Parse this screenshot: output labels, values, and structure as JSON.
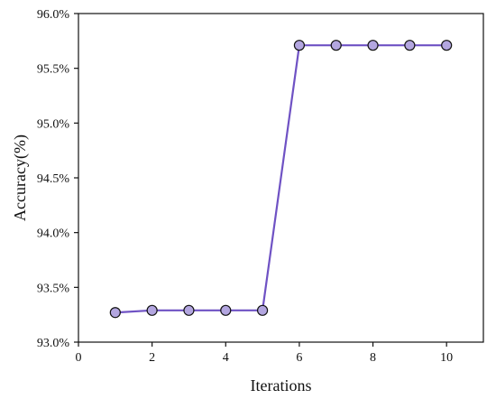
{
  "chart_data": {
    "type": "line",
    "xlabel": "Iterations",
    "ylabel": "Accuracy(%)",
    "xlim": [
      0,
      11
    ],
    "ylim": [
      93.0,
      96.0
    ],
    "x_ticks": [
      0,
      2,
      4,
      6,
      8,
      10
    ],
    "x_tick_labels": [
      "0",
      "2",
      "4",
      "6",
      "8",
      "10"
    ],
    "y_ticks": [
      93.0,
      93.5,
      94.0,
      94.5,
      95.0,
      95.5,
      96.0
    ],
    "y_tick_labels": [
      "93.0%",
      "93.5%",
      "94.0%",
      "94.5%",
      "95.0%",
      "95.5%",
      "96.0%"
    ],
    "grid": false,
    "series": [
      {
        "x": [
          1,
          2,
          3,
          4,
          5,
          6,
          7,
          8,
          9,
          10
        ],
        "y": [
          93.27,
          93.29,
          93.29,
          93.29,
          93.29,
          95.71,
          95.71,
          95.71,
          95.71,
          95.71
        ],
        "line_color": "#6f52c4",
        "marker_fill": "#b3a6e0",
        "marker_edge": "#111111"
      }
    ]
  }
}
